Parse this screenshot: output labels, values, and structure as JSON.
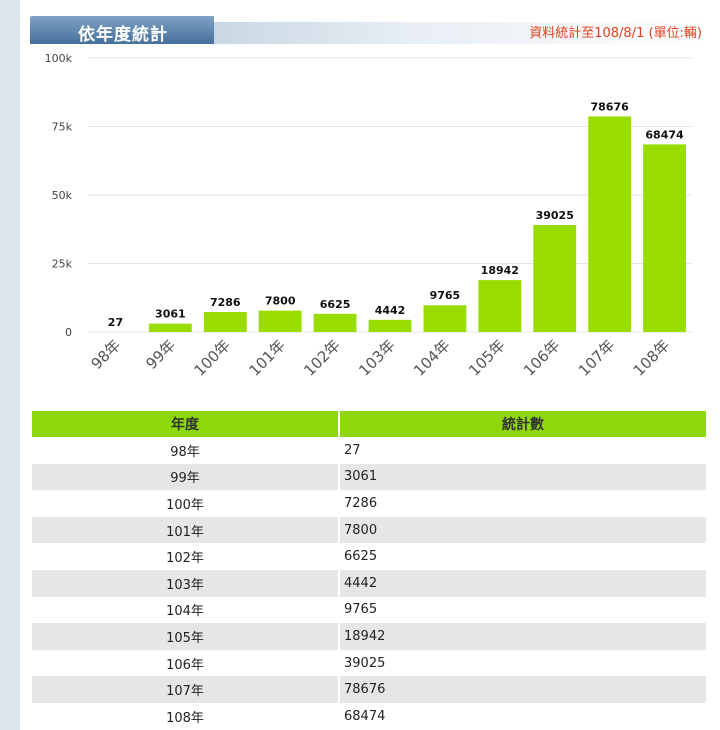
{
  "header": {
    "title": "依年度統計",
    "note": "資料統計至108/8/1 (單位:輛)"
  },
  "colors": {
    "bar": "#99dd00",
    "header_tab": "#4a74a0",
    "note": "#e2421f",
    "table_header": "#8ed70b"
  },
  "chart_data": {
    "type": "bar",
    "categories": [
      "98年",
      "99年",
      "100年",
      "101年",
      "102年",
      "103年",
      "104年",
      "105年",
      "106年",
      "107年",
      "108年"
    ],
    "values": [
      27,
      3061,
      7286,
      7800,
      6625,
      4442,
      9765,
      18942,
      39025,
      78676,
      68474
    ],
    "value_labels": [
      "27",
      "3061",
      "7286",
      "7800",
      "6625",
      "4442",
      "9765",
      "18942",
      "39025",
      "78676",
      "68474"
    ],
    "yticks": [
      0,
      25000,
      50000,
      75000,
      100000
    ],
    "ytick_labels": [
      "0",
      "25k",
      "50k",
      "75k",
      "100k"
    ],
    "ylim": [
      0,
      100000
    ],
    "grid": true,
    "legend": "none"
  },
  "table": {
    "headers": [
      "年度",
      "統計數"
    ],
    "rows": [
      [
        "98年",
        "27"
      ],
      [
        "99年",
        "3061"
      ],
      [
        "100年",
        "7286"
      ],
      [
        "101年",
        "7800"
      ],
      [
        "102年",
        "6625"
      ],
      [
        "103年",
        "4442"
      ],
      [
        "104年",
        "9765"
      ],
      [
        "105年",
        "18942"
      ],
      [
        "106年",
        "39025"
      ],
      [
        "107年",
        "78676"
      ],
      [
        "108年",
        "68474"
      ]
    ]
  }
}
